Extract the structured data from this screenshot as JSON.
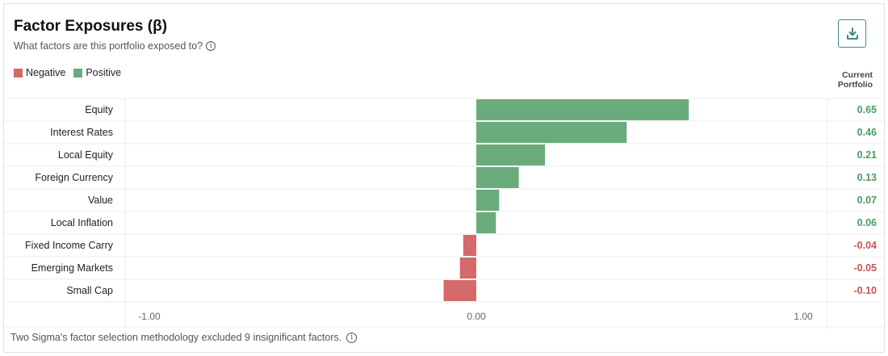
{
  "header": {
    "title": "Factor Exposures (β)",
    "subtitle": "What factors are this portfolio exposed to?"
  },
  "legend": [
    {
      "label": "Negative",
      "color": "#d46a6a"
    },
    {
      "label": "Positive",
      "color": "#6aab7c"
    }
  ],
  "value_column_header": [
    "Current",
    "Portfolio"
  ],
  "footer": {
    "note": "Two Sigma's factor selection methodology excluded 9 insignificant factors."
  },
  "colors": {
    "positive": "#6aab7c",
    "negative": "#d46a6a",
    "positive_text": "#4d9a63",
    "negative_text": "#c85454",
    "accent": "#3e8a8a"
  },
  "chart_data": {
    "type": "bar",
    "orientation": "horizontal",
    "categories": [
      "Equity",
      "Interest Rates",
      "Local Equity",
      "Foreign Currency",
      "Value",
      "Local Inflation",
      "Fixed Income Carry",
      "Emerging Markets",
      "Small Cap"
    ],
    "values": [
      0.65,
      0.46,
      0.21,
      0.13,
      0.07,
      0.06,
      -0.04,
      -0.05,
      -0.1
    ],
    "value_labels": [
      "0.65",
      "0.46",
      "0.21",
      "0.13",
      "0.07",
      "0.06",
      "-0.04",
      "-0.05",
      "-0.10"
    ],
    "xlim": [
      -1.0,
      1.0
    ],
    "xticks": [
      -1.0,
      0.0,
      1.0
    ],
    "xtick_labels": [
      "-1.00",
      "0.00",
      "1.00"
    ],
    "title": "Factor Exposures (β)",
    "xlabel": "",
    "ylabel": ""
  }
}
